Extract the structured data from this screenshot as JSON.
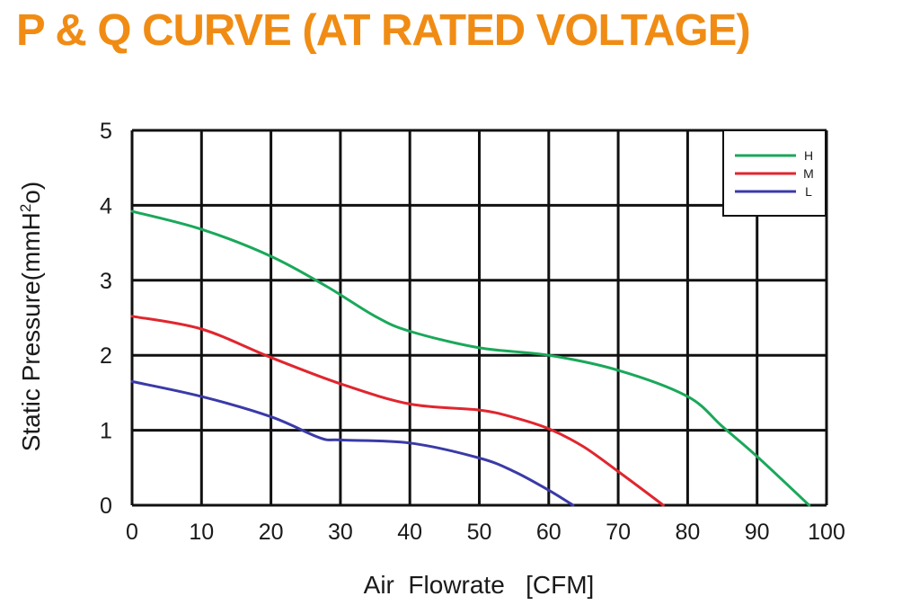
{
  "page": {
    "title": "P & Q CURVE (AT RATED VOLTAGE)"
  },
  "colors": {
    "title": "#f08c14",
    "grid": "#111111",
    "H": "#1aa85a",
    "M": "#e0262e",
    "L": "#3a3aa8"
  },
  "chart_data": {
    "type": "line",
    "title": "P & Q CURVE (AT RATED VOLTAGE)",
    "xlabel": "Air  Flowrate   [CFM]",
    "ylabel_main": "Static Pressure(mmH",
    "ylabel_sup": "2",
    "ylabel_end": "o)",
    "xlim": [
      0,
      100
    ],
    "ylim": [
      0,
      5
    ],
    "x_ticks": [
      "0",
      "10",
      "20",
      "30",
      "40",
      "50",
      "60",
      "70",
      "80",
      "90",
      "100"
    ],
    "y_ticks": [
      "0",
      "1",
      "2",
      "3",
      "4",
      "5"
    ],
    "grid": true,
    "legend_position": "top-right",
    "series": [
      {
        "name": "H",
        "color": "#1aa85a",
        "x": [
          0,
          10,
          20,
          28,
          35,
          40,
          50,
          60,
          70,
          80,
          85,
          90,
          97.5
        ],
        "y": [
          3.92,
          3.68,
          3.32,
          2.92,
          2.52,
          2.32,
          2.1,
          2.0,
          1.8,
          1.45,
          1.05,
          0.65,
          0
        ]
      },
      {
        "name": "M",
        "color": "#e0262e",
        "x": [
          0,
          10,
          20,
          30,
          40,
          50,
          55,
          60,
          65,
          70,
          76.5
        ],
        "y": [
          2.52,
          2.35,
          1.97,
          1.62,
          1.35,
          1.27,
          1.17,
          1.02,
          0.78,
          0.45,
          0
        ]
      },
      {
        "name": "L",
        "color": "#3a3aa8",
        "x": [
          0,
          10,
          20,
          27,
          30,
          40,
          50,
          55,
          60,
          63.5
        ],
        "y": [
          1.65,
          1.45,
          1.18,
          0.9,
          0.87,
          0.83,
          0.63,
          0.45,
          0.2,
          0
        ]
      }
    ]
  }
}
